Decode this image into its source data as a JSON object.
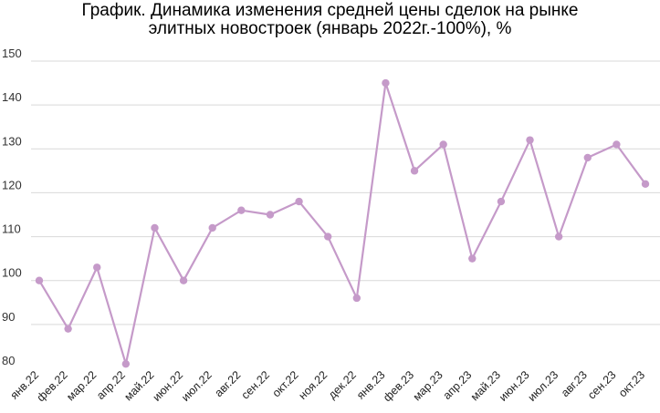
{
  "chart_data": {
    "type": "line",
    "title_lines": [
      "График. Динамика изменения средней цены сделок на рынке",
      "элитных новостроек (январь 2022г.-100%), %"
    ],
    "categories": [
      "янв.22",
      "фев.22",
      "мар.22",
      "апр.22",
      "май.22",
      "июн.22",
      "июл.22",
      "авг.22",
      "сен.22",
      "окт.22",
      "ноя.22",
      "дек.22",
      "янв.23",
      "фев.23",
      "мар.23",
      "апр.23",
      "май.23",
      "июн.23",
      "июл.23",
      "авг.23",
      "сен.23",
      "окт.23"
    ],
    "series": [
      {
        "values": [
          100,
          89,
          103,
          81,
          112,
          100,
          112,
          116,
          115,
          118,
          110,
          96,
          145,
          125,
          131,
          105,
          118,
          132,
          110,
          128,
          131,
          122
        ],
        "color": "#c59ac9"
      }
    ],
    "ylim": [
      80,
      150
    ],
    "yticks": [
      80,
      90,
      100,
      110,
      120,
      130,
      140,
      150
    ],
    "grid": true,
    "legend": "none",
    "colors": {
      "line": "#c59ac9",
      "marker": "#c59ac9",
      "grid": "#d9d9d9",
      "title": "#000000"
    }
  }
}
